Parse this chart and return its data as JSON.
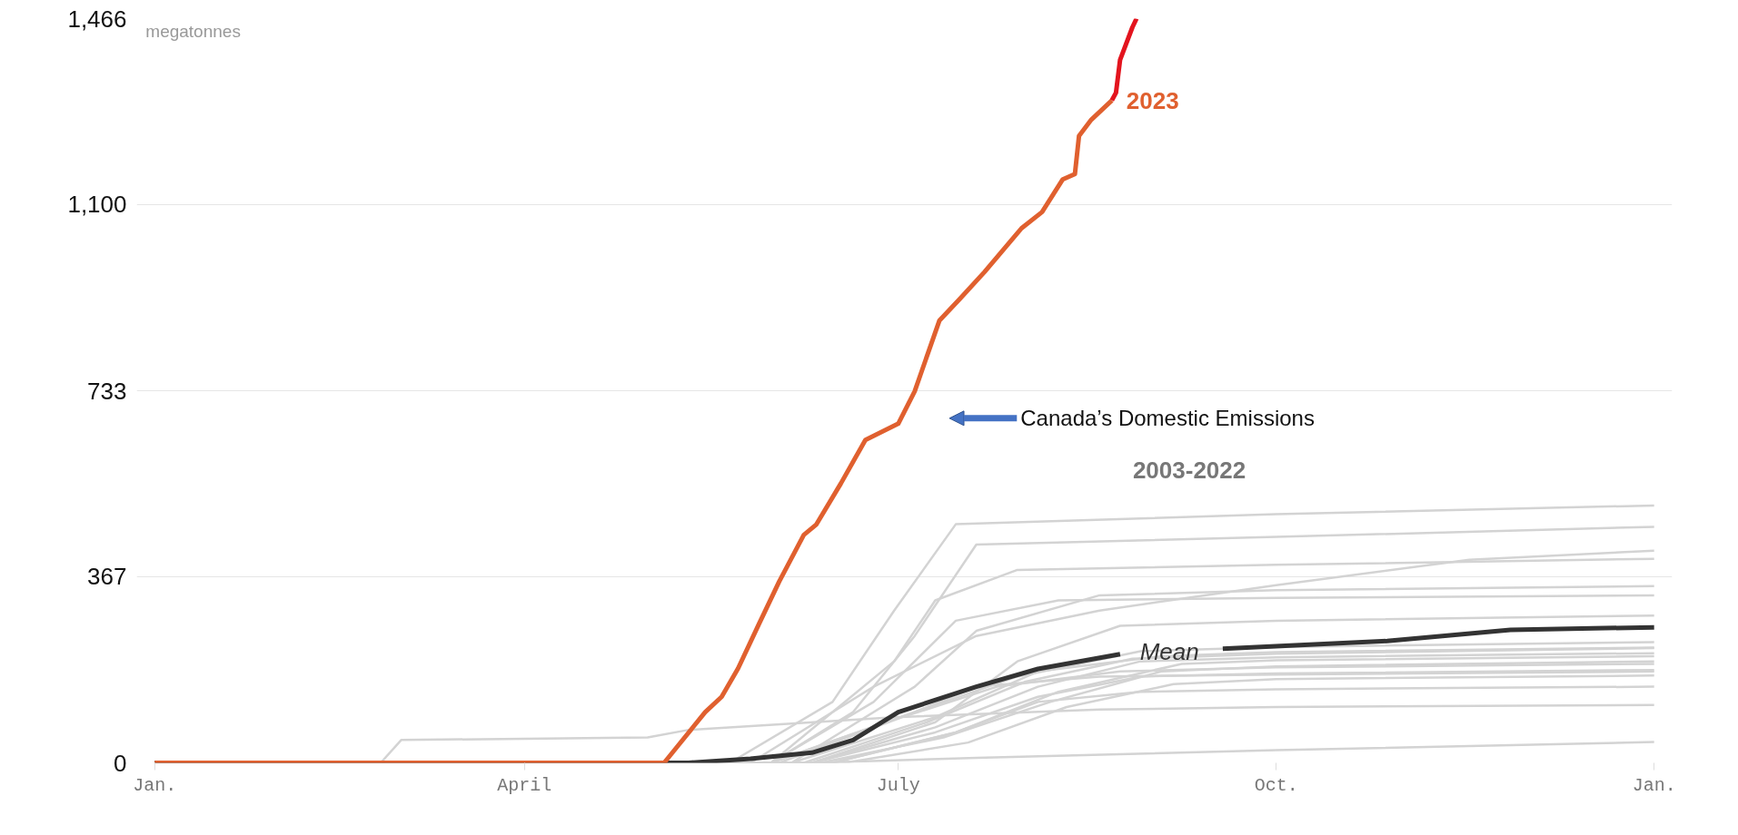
{
  "chart_data": {
    "type": "line",
    "ylabel": "megatonnes",
    "xlim": [
      "2023-01-01",
      "2024-01-01"
    ],
    "ylim": [
      0,
      1466
    ],
    "xticks": [
      {
        "value": "2023-01-01",
        "label": "Jan."
      },
      {
        "value": "2023-04-01",
        "label": "April"
      },
      {
        "value": "2023-07-01",
        "label": "July"
      },
      {
        "value": "2023-10-01",
        "label": "Oct."
      },
      {
        "value": "2024-01-01",
        "label": "Jan."
      }
    ],
    "yticks": [
      {
        "value": 0,
        "label": "0"
      },
      {
        "value": 367,
        "label": "367"
      },
      {
        "value": 733,
        "label": "733"
      },
      {
        "value": 1100,
        "label": "1,100"
      },
      {
        "value": 1466,
        "label": "1,466"
      }
    ],
    "grid": "y",
    "line_style": "solid",
    "marker": "none",
    "annotations": [
      "2003-2022",
      "Canada’s Domestic Emissions"
    ],
    "series": [
      {
        "color": "#d3d3d3",
        "x": [
          "2023-01-01",
          "2023-05-21",
          "2023-06-15",
          "2023-06-30",
          "2023-07-15",
          "2023-10-01",
          "2024-01-01"
        ],
        "values": [
          0,
          0,
          120,
          300,
          470,
          490,
          507
        ]
      },
      {
        "color": "#d3d3d3",
        "x": [
          "2023-01-01",
          "2023-05-31",
          "2023-06-20",
          "2023-07-05",
          "2023-07-20",
          "2023-10-01",
          "2024-01-01"
        ],
        "values": [
          0,
          0,
          100,
          250,
          430,
          445,
          465
        ]
      },
      {
        "color": "#d3d3d3",
        "x": [
          "2023-01-01",
          "2023-05-26",
          "2023-06-25",
          "2023-07-20",
          "2023-08-19",
          "2023-10-01",
          "2023-11-17",
          "2024-01-01"
        ],
        "values": [
          0,
          0,
          150,
          250,
          300,
          350,
          400,
          418
        ]
      },
      {
        "color": "#d3d3d3",
        "x": [
          "2023-01-01",
          "2023-05-31",
          "2023-06-30",
          "2023-07-10",
          "2023-07-30",
          "2023-10-01",
          "2024-01-01"
        ],
        "values": [
          0,
          0,
          200,
          320,
          380,
          390,
          402
        ]
      },
      {
        "color": "#d3d3d3",
        "x": [
          "2023-01-01",
          "2023-06-05",
          "2023-07-05",
          "2023-07-20",
          "2023-08-19",
          "2023-10-01",
          "2024-01-01"
        ],
        "values": [
          0,
          0,
          150,
          260,
          330,
          340,
          348
        ]
      },
      {
        "color": "#d3d3d3",
        "x": [
          "2023-01-01",
          "2023-05-31",
          "2023-06-25",
          "2023-07-15",
          "2023-08-09",
          "2023-10-01",
          "2024-01-01"
        ],
        "values": [
          0,
          0,
          120,
          280,
          320,
          325,
          330
        ]
      },
      {
        "color": "#d3d3d3",
        "x": [
          "2023-01-01",
          "2023-06-10",
          "2023-07-10",
          "2023-07-30",
          "2023-08-24",
          "2023-10-01",
          "2024-01-01"
        ],
        "values": [
          0,
          0,
          80,
          200,
          270,
          280,
          290
        ]
      },
      {
        "color": "#d3d3d3",
        "x": [
          "2023-01-01",
          "2023-05-31",
          "2023-07-05",
          "2023-07-30",
          "2023-08-29",
          "2023-10-01",
          "2024-01-01"
        ],
        "values": [
          0,
          0,
          100,
          170,
          220,
          228,
          238
        ]
      },
      {
        "color": "#d3d3d3",
        "x": [
          "2023-01-01",
          "2023-06-05",
          "2023-07-10",
          "2023-08-04",
          "2023-09-03",
          "2023-10-01",
          "2024-01-01"
        ],
        "values": [
          0,
          0,
          90,
          180,
          210,
          218,
          227
        ]
      },
      {
        "color": "#d3d3d3",
        "x": [
          "2023-01-01",
          "2023-06-10",
          "2023-07-10",
          "2023-08-04",
          "2023-08-29",
          "2023-10-01",
          "2024-01-01"
        ],
        "values": [
          0,
          0,
          70,
          150,
          200,
          208,
          216
        ]
      },
      {
        "color": "#d3d3d3",
        "x": [
          "2023-01-01",
          "2023-06-15",
          "2023-07-15",
          "2023-08-09",
          "2023-09-08",
          "2023-10-01",
          "2024-01-01"
        ],
        "values": [
          0,
          0,
          60,
          140,
          195,
          202,
          210
        ]
      },
      {
        "color": "#d3d3d3",
        "x": [
          "2023-01-01",
          "2023-06-10",
          "2023-07-10",
          "2023-08-04",
          "2023-08-29",
          "2023-10-01",
          "2024-01-01"
        ],
        "values": [
          0,
          0,
          60,
          130,
          170,
          176,
          183
        ]
      },
      {
        "color": "#d3d3d3",
        "x": [
          "2023-01-01",
          "2023-05-31",
          "2023-07-05",
          "2023-07-20",
          "2023-08-19",
          "2023-10-01",
          "2024-01-01"
        ],
        "values": [
          0,
          0,
          100,
          150,
          170,
          174,
          180
        ]
      },
      {
        "color": "#d3d3d3",
        "x": [
          "2023-01-01",
          "2023-06-15",
          "2023-07-15",
          "2023-08-04",
          "2023-08-29",
          "2023-10-01",
          "2024-01-01"
        ],
        "values": [
          0,
          0,
          60,
          120,
          140,
          145,
          150
        ]
      },
      {
        "color": "#d3d3d3",
        "x": [
          "2023-01-01",
          "2023-02-25",
          "2023-03-02",
          "2023-05-01",
          "2023-05-11",
          "2023-06-30",
          "2023-08-19",
          "2023-10-01",
          "2024-01-01"
        ],
        "values": [
          0,
          0,
          45,
          50,
          65,
          90,
          105,
          110,
          114
        ]
      },
      {
        "color": "#d3d3d3",
        "x": [
          "2023-01-01",
          "2023-06-10",
          "2023-07-20",
          "2023-10-01",
          "2024-01-01"
        ],
        "values": [
          0,
          0,
          10,
          25,
          41
        ]
      },
      {
        "color": "#d3d3d3",
        "x": [
          "2023-01-01",
          "2023-06-08",
          "2023-07-08",
          "2023-08-01",
          "2023-08-27",
          "2023-10-01",
          "2024-01-01"
        ],
        "values": [
          0,
          0,
          80,
          160,
          205,
          215,
          226
        ]
      },
      {
        "color": "#d3d3d3",
        "x": [
          "2023-01-01",
          "2023-06-12",
          "2023-07-12",
          "2023-08-07",
          "2023-09-03",
          "2023-10-01",
          "2024-01-01"
        ],
        "values": [
          0,
          0,
          50,
          120,
          180,
          190,
          200
        ]
      },
      {
        "color": "#d3d3d3",
        "x": [
          "2023-01-01",
          "2023-06-02",
          "2023-07-02",
          "2023-07-25",
          "2023-08-24",
          "2023-10-01",
          "2024-01-01"
        ],
        "values": [
          0,
          0,
          90,
          150,
          180,
          188,
          195
        ]
      },
      {
        "color": "#d3d3d3",
        "x": [
          "2023-01-01",
          "2023-06-18",
          "2023-07-18",
          "2023-08-11",
          "2023-09-06",
          "2023-10-01",
          "2024-01-01"
        ],
        "values": [
          0,
          0,
          40,
          110,
          155,
          165,
          172
        ]
      },
      {
        "name": "Mean",
        "color": "#333333",
        "x": [
          "2023-01-01",
          "2023-05-11",
          "2023-05-26",
          "2023-06-10",
          "2023-06-20",
          "2023-07-01",
          "2023-07-20",
          "2023-08-04",
          "2023-08-24",
          "2023-09-05",
          "2023-09-18",
          "2023-10-28",
          "2023-11-27",
          "2024-01-01"
        ],
        "values": [
          0,
          0,
          8,
          20,
          45,
          100,
          150,
          185,
          214,
          null,
          225,
          240,
          262,
          267
        ]
      },
      {
        "name": "2023",
        "color": "#e0602f",
        "x": [
          "2023-01-01",
          "2023-05-05",
          "2023-05-08",
          "2023-05-15",
          "2023-05-19",
          "2023-05-23",
          "2023-05-28",
          "2023-06-02",
          "2023-06-08",
          "2023-06-11",
          "2023-06-17",
          "2023-06-23",
          "2023-07-01",
          "2023-07-05",
          "2023-07-11",
          "2023-07-16",
          "2023-07-22",
          "2023-07-31",
          "2023-08-05",
          "2023-08-10",
          "2023-08-13",
          "2023-08-14",
          "2023-08-17",
          "2023-08-22"
        ],
        "values": [
          0,
          0,
          30,
          100,
          130,
          186,
          272,
          357,
          449,
          469,
          550,
          636,
          668,
          732,
          871,
          914,
          967,
          1053,
          1085,
          1149,
          1160,
          1235,
          1267,
          1305
        ]
      },
      {
        "color": "#e3141e",
        "x": [
          "2023-08-22",
          "2023-08-23",
          "2023-08-24",
          "2023-08-27",
          "2023-08-28"
        ],
        "values": [
          1305,
          1320,
          1385,
          1449,
          1466
        ]
      }
    ]
  }
}
